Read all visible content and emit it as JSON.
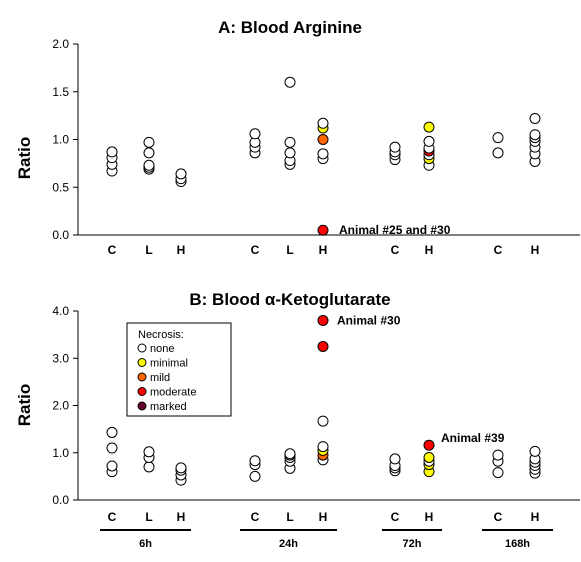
{
  "colors": {
    "none": "#ffffff",
    "minimal": "#ffff00",
    "mild": "#ff6600",
    "moderate": "#ff0000",
    "marked": "#660033",
    "stroke": "#000000"
  },
  "time_labels": [
    "6h",
    "24h",
    "72h",
    "168h"
  ],
  "chart_data": [
    {
      "type": "scatter",
      "title": "A: Blood Arginine",
      "ylabel": "Ratio",
      "ylim": [
        0,
        2
      ],
      "yticks": [
        "0.0",
        "0.5",
        "1.0",
        "1.5",
        "2.0"
      ],
      "categories": [
        "C",
        "L",
        "H",
        "C",
        "L",
        "H",
        "C",
        "H",
        "C",
        "H"
      ],
      "groups": [
        {
          "time": "6h",
          "dose": "C",
          "values": [
            0.67,
            0.74,
            0.81,
            0.87
          ]
        },
        {
          "time": "6h",
          "dose": "L",
          "values": [
            0.69,
            0.71,
            0.73,
            0.86,
            0.97
          ]
        },
        {
          "time": "6h",
          "dose": "H",
          "values": [
            0.56,
            0.59,
            0.64
          ]
        },
        {
          "time": "24h",
          "dose": "C",
          "values": [
            0.86,
            0.92,
            0.97,
            1.06
          ]
        },
        {
          "time": "24h",
          "dose": "L",
          "values": [
            0.74,
            0.78,
            0.86,
            0.97,
            1.6
          ]
        },
        {
          "time": "24h",
          "dose": "H",
          "values": [
            0.05,
            0.8,
            0.85,
            1.0,
            1.12,
            1.17
          ],
          "necrosis": [
            "moderate",
            "none",
            "none",
            "mild",
            "minimal",
            "none"
          ]
        },
        {
          "time": "72h",
          "dose": "C",
          "values": [
            0.79,
            0.84,
            0.87,
            0.92
          ]
        },
        {
          "time": "72h",
          "dose": "H",
          "values": [
            0.73,
            0.8,
            0.84,
            0.88,
            0.91,
            0.98,
            1.13
          ],
          "necrosis": [
            "none",
            "minimal",
            "none",
            "moderate",
            "none",
            "none",
            "minimal"
          ]
        },
        {
          "time": "168h",
          "dose": "C",
          "values": [
            0.86,
            1.02
          ]
        },
        {
          "time": "168h",
          "dose": "H",
          "values": [
            0.77,
            0.85,
            0.92,
            0.98,
            1.02,
            1.05,
            1.22
          ]
        }
      ],
      "annotations": [
        {
          "text": "Animal #25 and #30",
          "group": 5,
          "y": 0.05
        }
      ]
    },
    {
      "type": "scatter",
      "title": "B: Blood α-Ketoglutarate",
      "ylabel": "Ratio",
      "ylim": [
        0,
        4
      ],
      "yticks": [
        "0.0",
        "1.0",
        "2.0",
        "3.0",
        "4.0"
      ],
      "categories": [
        "C",
        "L",
        "H",
        "C",
        "L",
        "H",
        "C",
        "H",
        "C",
        "H"
      ],
      "groups": [
        {
          "time": "6h",
          "dose": "C",
          "values": [
            0.6,
            0.72,
            1.1,
            1.43
          ]
        },
        {
          "time": "6h",
          "dose": "L",
          "values": [
            0.7,
            0.9,
            1.02
          ]
        },
        {
          "time": "6h",
          "dose": "H",
          "values": [
            0.42,
            0.53,
            0.63,
            0.68
          ]
        },
        {
          "time": "24h",
          "dose": "C",
          "values": [
            0.5,
            0.75,
            0.83
          ]
        },
        {
          "time": "24h",
          "dose": "L",
          "values": [
            0.67,
            0.82,
            0.9,
            0.95,
            0.98
          ]
        },
        {
          "time": "24h",
          "dose": "H",
          "values": [
            0.85,
            0.95,
            1.05,
            1.13,
            1.67,
            3.25,
            3.8
          ],
          "necrosis": [
            "none",
            "mild",
            "minimal",
            "none",
            "none",
            "moderate",
            "moderate"
          ]
        },
        {
          "time": "72h",
          "dose": "C",
          "values": [
            0.62,
            0.68,
            0.73,
            0.87
          ]
        },
        {
          "time": "72h",
          "dose": "H",
          "values": [
            0.6,
            0.75,
            0.82,
            0.9,
            1.16
          ],
          "necrosis": [
            "minimal",
            "minimal",
            "none",
            "minimal",
            "moderate"
          ]
        },
        {
          "time": "168h",
          "dose": "C",
          "values": [
            0.58,
            0.82,
            0.95
          ]
        },
        {
          "time": "168h",
          "dose": "H",
          "values": [
            0.57,
            0.65,
            0.73,
            0.8,
            0.87,
            1.03
          ]
        }
      ],
      "annotations": [
        {
          "text": "Animal #30",
          "group": 5,
          "y": 3.8
        },
        {
          "text": "Animal #39",
          "group": 7,
          "y": 1.16
        }
      ],
      "legend": {
        "title": "Necrosis:",
        "position": "top-left",
        "items": [
          {
            "key": "none",
            "label": "none"
          },
          {
            "key": "minimal",
            "label": "minimal"
          },
          {
            "key": "mild",
            "label": "mild"
          },
          {
            "key": "moderate",
            "label": "moderate"
          },
          {
            "key": "marked",
            "label": "marked"
          }
        ]
      }
    }
  ]
}
